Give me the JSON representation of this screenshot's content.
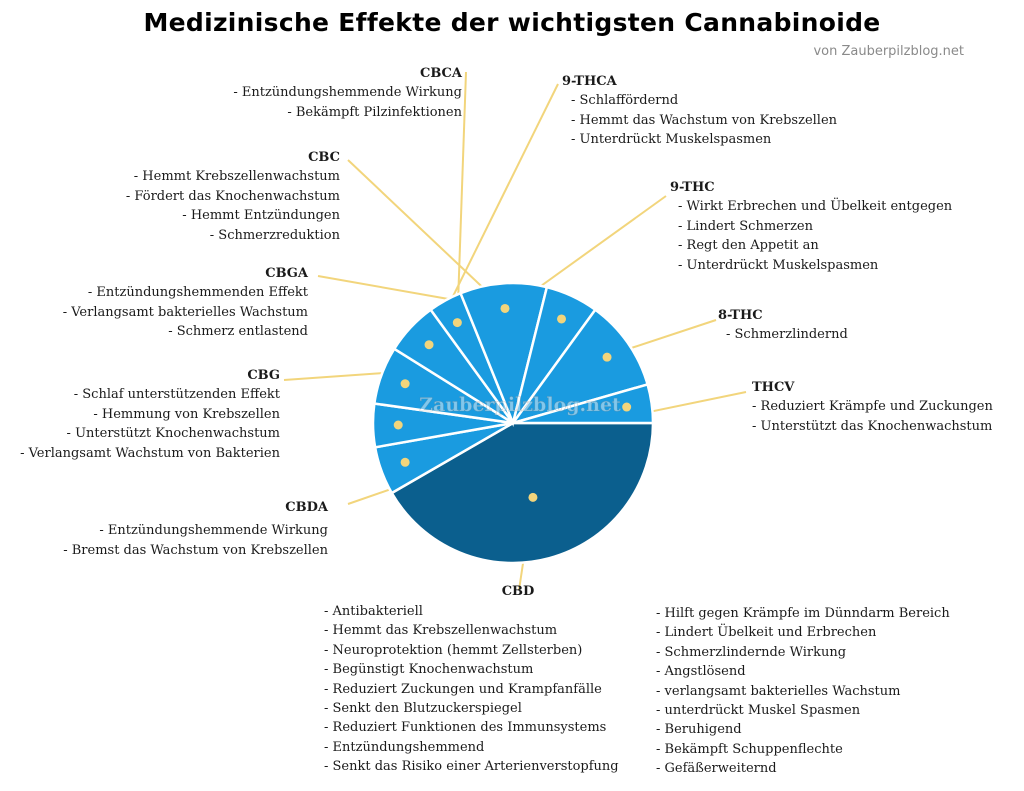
{
  "title": "Medizinische Effekte der wichtigsten Cannabinoide",
  "credit": "von Zauberpilzblog.net",
  "watermark": "Zauberpilzblog.net",
  "colors": {
    "slice_light": "#1a9be0",
    "slice_dark": "#0b5f8e",
    "leader": "#f2d57c",
    "separator": "#ffffff"
  },
  "chart_data": {
    "type": "pie",
    "title": "Medizinische Effekte der wichtigsten Cannabinoide",
    "slices": [
      {
        "name": "CBD",
        "value": 37.5
      },
      {
        "name": "THCV",
        "value": 5
      },
      {
        "name": "8-THC",
        "value": 4.5
      },
      {
        "name": "9-THC",
        "value": 6
      },
      {
        "name": "9-THCA",
        "value": 5.5
      },
      {
        "name": "CBCA",
        "value": 3.5
      },
      {
        "name": "CBC",
        "value": 9
      },
      {
        "name": "CBGA",
        "value": 5.5
      },
      {
        "name": "CBG",
        "value": 9.5
      },
      {
        "name": "CBDA",
        "value": 4
      }
    ]
  },
  "cannabinoids": {
    "CBCA": [
      "- Entzündungshemmende Wirkung",
      "- Bekämpft Pilzinfektionen"
    ],
    "9-THCA": [
      "- Schlaffördernd",
      "- Hemmt das Wachstum von Krebszellen",
      "- Unterdrückt Muskelspasmen"
    ],
    "CBC": [
      "- Hemmt Krebszellenwachstum",
      "- Fördert das Knochenwachstum",
      "- Hemmt Entzündungen",
      "- Schmerzreduktion"
    ],
    "9-THC": [
      "- Wirkt Erbrechen und Übelkeit entgegen",
      "- Lindert Schmerzen",
      "- Regt den Appetit an",
      "- Unterdrückt Muskelspasmen"
    ],
    "CBGA": [
      "- Entzündungshemmenden Effekt",
      "- Verlangsamt bakterielles Wachstum",
      "- Schmerz entlastend"
    ],
    "8-THC": [
      "- Schmerzlindernd"
    ],
    "CBG": [
      "- Schlaf unterstützenden Effekt",
      "- Hemmung von Krebszellen",
      "- Unterstützt Knochenwachstum",
      "- Verlangsamt Wachstum von Bakterien"
    ],
    "THCV": [
      "- Reduziert Krämpfe und Zuckungen",
      "- Unterstützt das Knochenwachstum"
    ],
    "CBDA": [
      "- Entzündungshemmende Wirkung",
      "- Bremst das Wachstum von Krebszellen"
    ],
    "CBD_left": [
      "- Antibakteriell",
      "- Hemmt das Krebszellenwachstum",
      "- Neuroprotektion (hemmt Zellsterben)",
      "- Begünstigt Knochenwachstum",
      "- Reduziert Zuckungen und Krampfanfälle",
      "- Senkt den Blutzuckerspiegel",
      "- Reduziert Funktionen des Immunsystems",
      "- Entzündungshemmend",
      "- Senkt das Risiko einer Arterienverstopfung"
    ],
    "CBD_right": [
      "- Hilft gegen Krämpfe im Dünndarm Bereich",
      "- Lindert Übelkeit und Erbrechen",
      "- Schmerzlindernde Wirkung",
      "- Angstlösend",
      "- verlangsamt bakterielles Wachstum",
      "- unterdrückt Muskel Spasmen",
      "- Beruhigend",
      "- Bekämpft Schuppenflechte",
      "- Gefäßerweiternd"
    ]
  },
  "names": {
    "CBCA": "CBCA",
    "9-THCA": "9-THCA",
    "CBC": "CBC",
    "9-THC": "9-THC",
    "CBGA": "CBGA",
    "8-THC": "8-THC",
    "CBG": "CBG",
    "THCV": "THCV",
    "CBDA": "CBDA",
    "CBD": "CBD"
  }
}
